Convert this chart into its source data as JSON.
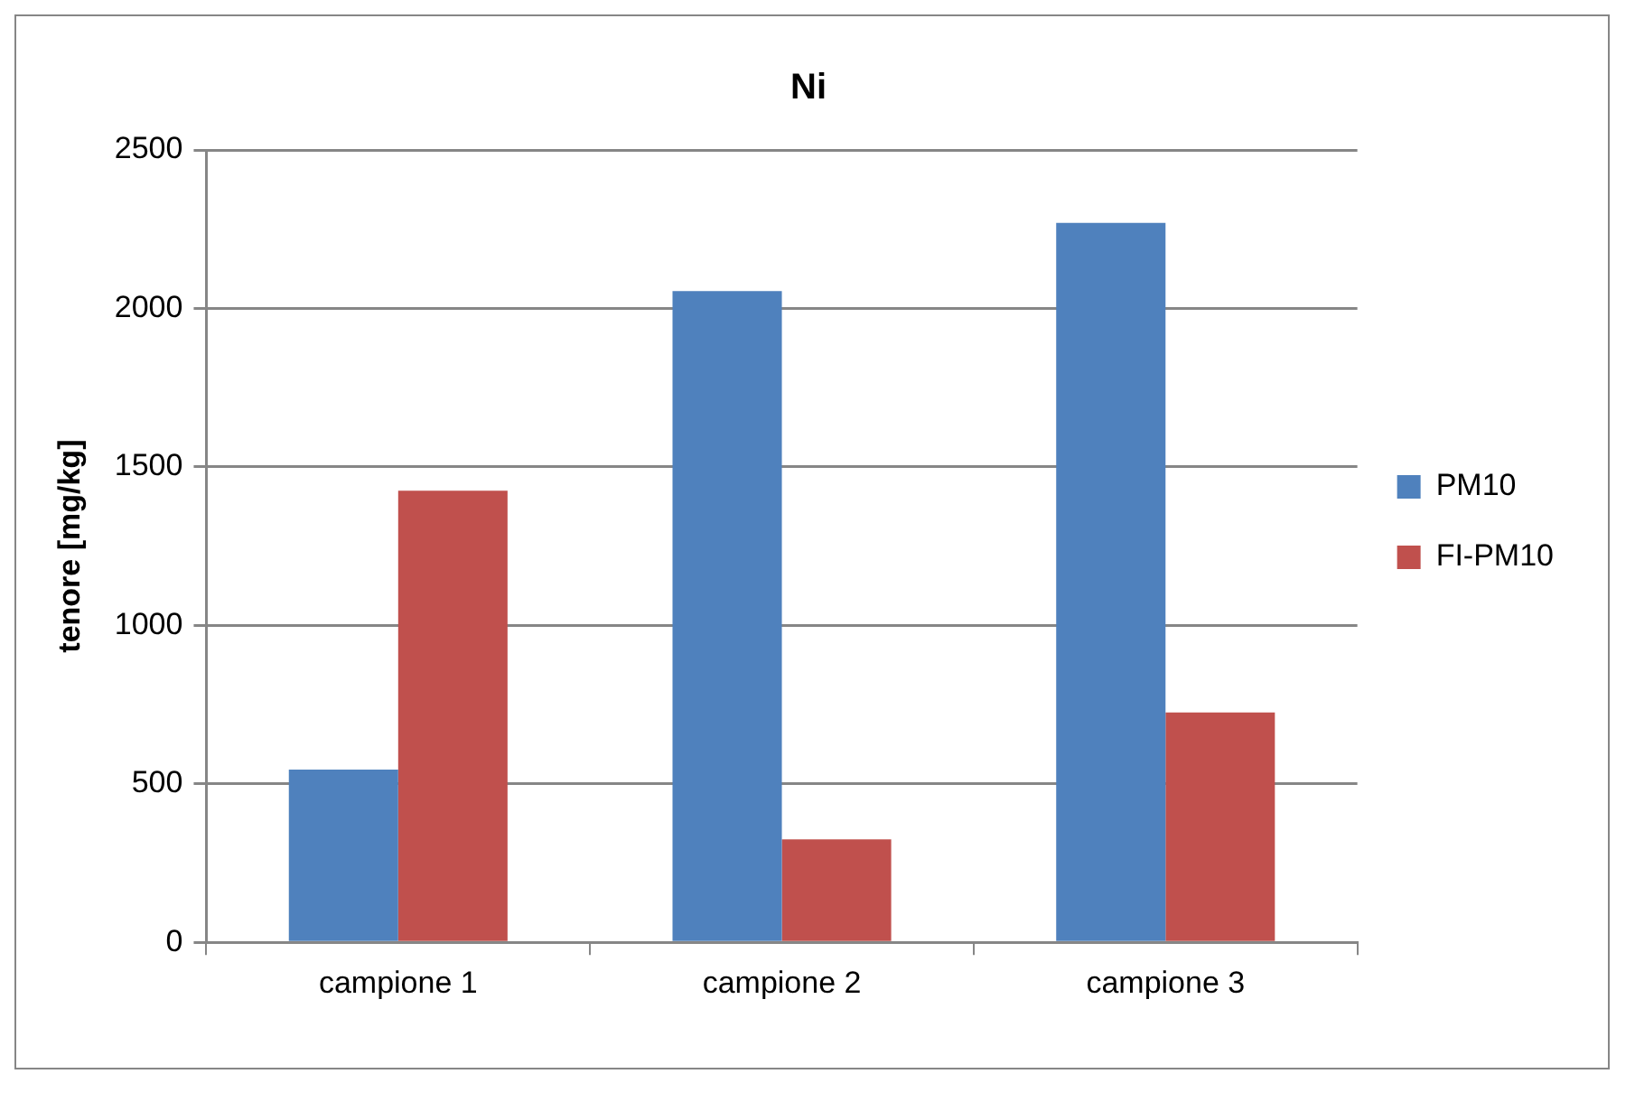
{
  "chart_data": {
    "type": "bar",
    "title": "Ni",
    "ylabel": "tenore [mg/kg]",
    "categories": [
      "campione 1",
      "campione 2",
      "campione 3"
    ],
    "series": [
      {
        "name": "PM10",
        "color": "#4f81bd",
        "values": [
          545,
          2055,
          2270
        ]
      },
      {
        "name": "FI-PM10",
        "color": "#c0504d",
        "values": [
          1425,
          325,
          725
        ]
      }
    ],
    "ylim": [
      0,
      2500
    ],
    "yticks": [
      0,
      500,
      1000,
      1500,
      2000,
      2500
    ],
    "grid": "y",
    "legend": "right"
  }
}
